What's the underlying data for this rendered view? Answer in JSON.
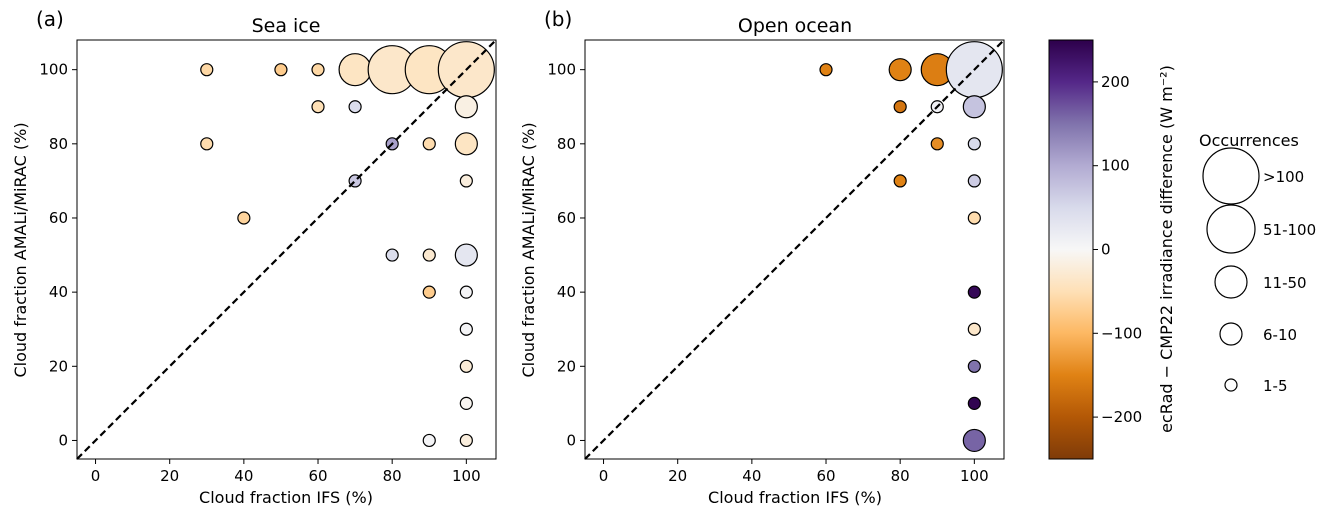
{
  "chart_data": [
    {
      "type": "scatter",
      "panel_label": "(a)",
      "title": "Sea ice",
      "xlabel": "Cloud fraction IFS (%)",
      "ylabel": "Cloud fraction AMALi/MiRAC (%)",
      "xlim": [
        -5,
        108
      ],
      "ylim": [
        -5,
        108
      ],
      "xticks": [
        0,
        20,
        40,
        60,
        80,
        100
      ],
      "yticks": [
        0,
        20,
        40,
        60,
        80,
        100
      ],
      "diagonal": "1:1 dashed line",
      "points": [
        {
          "x": 30,
          "y": 100,
          "occ": "1-5",
          "diff": -60
        },
        {
          "x": 50,
          "y": 100,
          "occ": "1-5",
          "diff": -75
        },
        {
          "x": 60,
          "y": 100,
          "occ": "1-5",
          "diff": -60
        },
        {
          "x": 70,
          "y": 100,
          "occ": "11-50",
          "diff": -40
        },
        {
          "x": 80,
          "y": 100,
          "occ": "51-100",
          "diff": -35
        },
        {
          "x": 90,
          "y": 100,
          "occ": "51-100",
          "diff": -40
        },
        {
          "x": 100,
          "y": 100,
          "occ": ">100",
          "diff": -35
        },
        {
          "x": 60,
          "y": 90,
          "occ": "1-5",
          "diff": -50
        },
        {
          "x": 70,
          "y": 90,
          "occ": "1-5",
          "diff": 45
        },
        {
          "x": 100,
          "y": 90,
          "occ": "6-10",
          "diff": -15
        },
        {
          "x": 30,
          "y": 80,
          "occ": "1-5",
          "diff": -55
        },
        {
          "x": 80,
          "y": 80,
          "occ": "1-5",
          "diff": 110
        },
        {
          "x": 90,
          "y": 80,
          "occ": "1-5",
          "diff": -55
        },
        {
          "x": 100,
          "y": 80,
          "occ": "6-10",
          "diff": -40
        },
        {
          "x": 70,
          "y": 70,
          "occ": "1-5",
          "diff": 70
        },
        {
          "x": 100,
          "y": 70,
          "occ": "1-5",
          "diff": -20
        },
        {
          "x": 40,
          "y": 60,
          "occ": "1-5",
          "diff": -65
        },
        {
          "x": 80,
          "y": 50,
          "occ": "1-5",
          "diff": 45
        },
        {
          "x": 90,
          "y": 50,
          "occ": "1-5",
          "diff": -30
        },
        {
          "x": 100,
          "y": 50,
          "occ": "6-10",
          "diff": 30
        },
        {
          "x": 90,
          "y": 40,
          "occ": "1-5",
          "diff": -75
        },
        {
          "x": 100,
          "y": 40,
          "occ": "1-5",
          "diff": 5
        },
        {
          "x": 100,
          "y": 30,
          "occ": "1-5",
          "diff": 5
        },
        {
          "x": 100,
          "y": 20,
          "occ": "1-5",
          "diff": -25
        },
        {
          "x": 100,
          "y": 10,
          "occ": "1-5",
          "diff": -5
        },
        {
          "x": 90,
          "y": 0,
          "occ": "1-5",
          "diff": 5
        },
        {
          "x": 100,
          "y": 0,
          "occ": "1-5",
          "diff": -20
        }
      ]
    },
    {
      "type": "scatter",
      "panel_label": "(b)",
      "title": "Open ocean",
      "xlabel": "Cloud fraction IFS (%)",
      "ylabel": "Cloud fraction AMALi/MiRAC (%)",
      "xlim": [
        -5,
        108
      ],
      "ylim": [
        -5,
        108
      ],
      "xticks": [
        0,
        20,
        40,
        60,
        80,
        100
      ],
      "yticks": [
        0,
        20,
        40,
        60,
        80,
        100
      ],
      "diagonal": "1:1 dashed line",
      "points": [
        {
          "x": 60,
          "y": 100,
          "occ": "1-5",
          "diff": -150
        },
        {
          "x": 80,
          "y": 100,
          "occ": "6-10",
          "diff": -150
        },
        {
          "x": 90,
          "y": 100,
          "occ": "11-50",
          "diff": -155
        },
        {
          "x": 100,
          "y": 100,
          "occ": ">100",
          "diff": 30
        },
        {
          "x": 80,
          "y": 90,
          "occ": "1-5",
          "diff": -165
        },
        {
          "x": 90,
          "y": 90,
          "occ": "1-5",
          "diff": 10
        },
        {
          "x": 100,
          "y": 90,
          "occ": "6-10",
          "diff": 75
        },
        {
          "x": 90,
          "y": 80,
          "occ": "1-5",
          "diff": -140
        },
        {
          "x": 100,
          "y": 80,
          "occ": "1-5",
          "diff": 50
        },
        {
          "x": 80,
          "y": 70,
          "occ": "1-5",
          "diff": -150
        },
        {
          "x": 100,
          "y": 70,
          "occ": "1-5",
          "diff": 65
        },
        {
          "x": 100,
          "y": 60,
          "occ": "1-5",
          "diff": -55
        },
        {
          "x": 100,
          "y": 40,
          "occ": "1-5",
          "diff": 240
        },
        {
          "x": 100,
          "y": 30,
          "occ": "1-5",
          "diff": -35
        },
        {
          "x": 100,
          "y": 20,
          "occ": "1-5",
          "diff": 150
        },
        {
          "x": 100,
          "y": 10,
          "occ": "1-5",
          "diff": 245
        },
        {
          "x": 100,
          "y": 0,
          "occ": "6-10",
          "diff": 160
        }
      ]
    }
  ],
  "colorbar": {
    "label": "ecRad − CMP22 irradiance difference (W m⁻²)",
    "range": [
      -250,
      250
    ],
    "ticks": [
      -200,
      -100,
      0,
      100,
      200
    ],
    "tick_labels": [
      "−200",
      "−100",
      "0",
      "100",
      "200"
    ],
    "colormap": "PuOr",
    "stops": [
      "#7f3b08",
      "#b35806",
      "#e08214",
      "#fdb863",
      "#fee0b6",
      "#f7f7f7",
      "#d8daeb",
      "#b2abd2",
      "#8073ac",
      "#542788",
      "#2d004b"
    ]
  },
  "legend": {
    "title": "Occurrences",
    "entries": [
      ">100",
      "51-100",
      "11-50",
      "6-10",
      "1-5"
    ]
  }
}
